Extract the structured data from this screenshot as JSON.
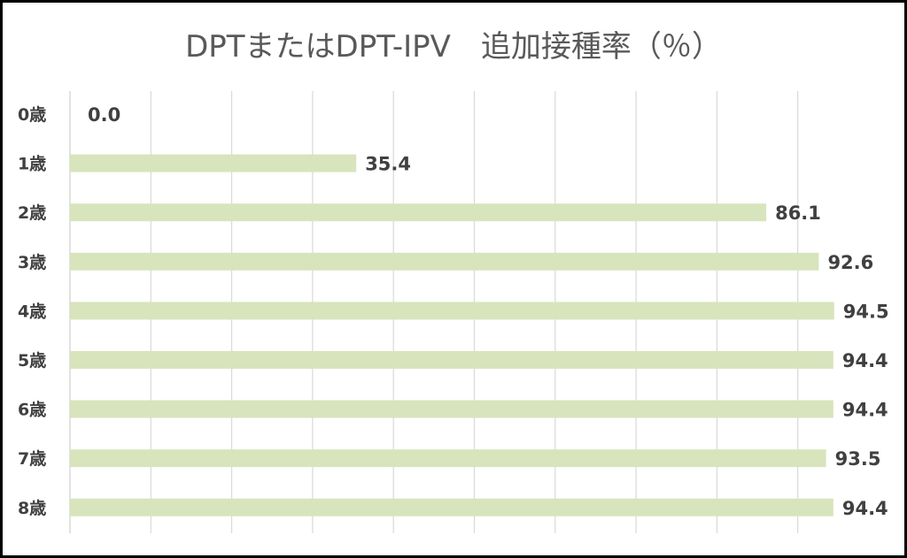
{
  "chart_data": {
    "type": "bar",
    "orientation": "horizontal",
    "title": "DPTまたはDPT-IPV　追加接種率（％）",
    "categories": [
      "0歳",
      "1歳",
      "2歳",
      "3歳",
      "4歳",
      "5歳",
      "6歳",
      "7歳",
      "8歳"
    ],
    "values": [
      0.0,
      35.4,
      86.1,
      92.6,
      94.5,
      94.4,
      94.4,
      93.5,
      94.4
    ],
    "value_labels": [
      "0.0",
      "35.4",
      "86.1",
      "92.6",
      "94.5",
      "94.4",
      "94.4",
      "93.5",
      "94.4"
    ],
    "xlim": [
      0,
      95
    ],
    "grid": true,
    "grid_interval": 10,
    "bar_color": "#d8e4bc",
    "grid_color": "#d9d9d9"
  }
}
